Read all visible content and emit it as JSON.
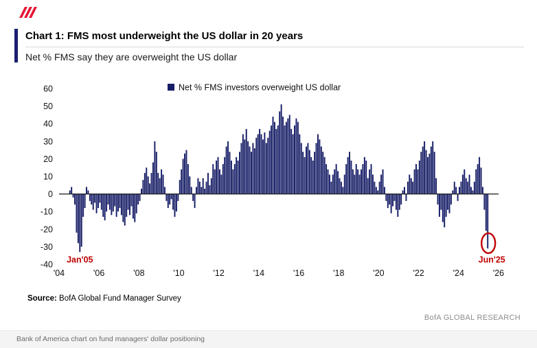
{
  "header": {
    "title": "Chart 1: FMS most underweight the US dollar in 20 years",
    "subtitle": "Net % FMS say they are overweight the US dollar"
  },
  "chart_data": {
    "type": "bar",
    "legend": "Net % FMS investors overweight US dollar",
    "bar_color": "#161d66",
    "ylim": [
      -40,
      60
    ],
    "ytick_step": 10,
    "x_axis_range": [
      2004,
      2026
    ],
    "x_tick_years": [
      2004,
      2006,
      2008,
      2010,
      2012,
      2014,
      2016,
      2018,
      2020,
      2022,
      2024,
      2026
    ],
    "x_tick_labels": [
      "'04",
      "'06",
      "'08",
      "'10",
      "'12",
      "'14",
      "'16",
      "'18",
      "'20",
      "'22",
      "'24",
      "'26"
    ],
    "x_start": "2004-07",
    "values": [
      2,
      4,
      -2,
      -6,
      -22,
      -28,
      -33,
      -30,
      -13,
      -8,
      4,
      2,
      -4,
      -6,
      -9,
      -5,
      -11,
      -8,
      -5,
      -9,
      -13,
      -15,
      -10,
      -6,
      -9,
      -12,
      -10,
      -7,
      -13,
      -10,
      -8,
      -12,
      -16,
      -18,
      -13,
      -9,
      -12,
      -7,
      -14,
      -16,
      -11,
      -6,
      -4,
      3,
      8,
      12,
      15,
      10,
      6,
      12,
      18,
      30,
      24,
      12,
      9,
      14,
      11,
      4,
      -4,
      -8,
      -6,
      -3,
      -9,
      -13,
      -10,
      -4,
      8,
      14,
      20,
      23,
      25,
      17,
      10,
      4,
      -4,
      -8,
      4,
      9,
      7,
      4,
      9,
      3,
      7,
      12,
      5,
      9,
      17,
      14,
      19,
      21,
      14,
      11,
      17,
      21,
      27,
      30,
      24,
      19,
      14,
      17,
      21,
      19,
      24,
      29,
      34,
      31,
      37,
      30,
      27,
      24,
      29,
      26,
      32,
      34,
      37,
      34,
      31,
      35,
      29,
      32,
      36,
      39,
      44,
      41,
      37,
      39,
      47,
      51,
      44,
      39,
      41,
      43,
      45,
      37,
      34,
      39,
      43,
      41,
      34,
      29,
      24,
      21,
      27,
      29,
      25,
      21,
      19,
      24,
      29,
      34,
      31,
      27,
      24,
      21,
      17,
      14,
      11,
      7,
      11,
      14,
      17,
      13,
      9,
      7,
      4,
      11,
      17,
      21,
      24,
      19,
      14,
      11,
      17,
      14,
      11,
      14,
      17,
      21,
      19,
      9,
      14,
      17,
      11,
      7,
      4,
      2,
      7,
      11,
      14,
      4,
      -4,
      -8,
      -6,
      -11,
      -7,
      -4,
      -9,
      -13,
      -9,
      -6,
      2,
      4,
      -4,
      7,
      11,
      9,
      7,
      14,
      17,
      14,
      19,
      24,
      27,
      30,
      25,
      21,
      23,
      27,
      30,
      24,
      9,
      -6,
      -13,
      -9,
      -16,
      -19,
      -13,
      -9,
      -11,
      -6,
      2,
      7,
      4,
      -4,
      4,
      7,
      11,
      14,
      9,
      7,
      11,
      4,
      2,
      7,
      14,
      17,
      21,
      15,
      4,
      -9,
      -21,
      -31
    ],
    "annotations": [
      {
        "label": "Jan'05",
        "month": "2005-01",
        "value": -33,
        "color": "#c00000",
        "circled": false
      },
      {
        "label": "Jun'25",
        "month": "2025-06",
        "value": -31,
        "color": "#c00000",
        "circled": true
      }
    ]
  },
  "source": {
    "label": "Source:",
    "text": " BofA Global Fund Manager Survey"
  },
  "branding": "BofA GLOBAL RESEARCH",
  "caption": "Bank of America chart on fund managers' dollar positioning",
  "colors": {
    "navy": "#1a1f71",
    "red": "#c00000",
    "logo_red": "#e31837"
  }
}
